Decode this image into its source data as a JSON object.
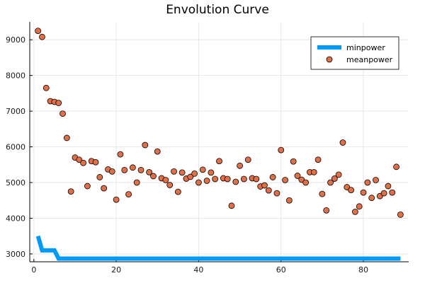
{
  "chart_data": {
    "type": "line",
    "title": "Envolution Curve",
    "xlabel": "",
    "ylabel": "",
    "xlim": [
      -1,
      91
    ],
    "ylim": [
      2780,
      9500
    ],
    "xticks": [
      0,
      20,
      40,
      60,
      80
    ],
    "yticks": [
      3000,
      4000,
      5000,
      6000,
      7000,
      8000,
      9000
    ],
    "grid": true,
    "legend_position": "top-right",
    "colors": {
      "minpower": "#009af9",
      "meanpower": "#e26f46"
    },
    "series": [
      {
        "name": "minpower",
        "style": "line",
        "x": [
          1,
          2,
          3,
          4,
          5,
          6,
          7,
          8,
          9,
          10,
          11,
          12,
          13,
          14,
          15,
          16,
          17,
          18,
          19,
          20,
          21,
          22,
          23,
          24,
          25,
          26,
          27,
          28,
          29,
          30,
          31,
          32,
          33,
          34,
          35,
          36,
          37,
          38,
          39,
          40,
          41,
          42,
          43,
          44,
          45,
          46,
          47,
          48,
          49,
          50,
          51,
          52,
          53,
          54,
          55,
          56,
          57,
          58,
          59,
          60,
          61,
          62,
          63,
          64,
          65,
          66,
          67,
          68,
          69,
          70,
          71,
          72,
          73,
          74,
          75,
          76,
          77,
          78,
          79,
          80,
          81,
          82,
          83,
          84,
          85,
          86,
          87,
          88,
          89
        ],
        "values": [
          3500,
          3100,
          3100,
          3100,
          3100,
          2870,
          2870,
          2870,
          2870,
          2870,
          2870,
          2870,
          2870,
          2870,
          2870,
          2870,
          2870,
          2870,
          2870,
          2870,
          2870,
          2870,
          2870,
          2870,
          2870,
          2870,
          2870,
          2870,
          2870,
          2870,
          2870,
          2870,
          2870,
          2870,
          2870,
          2870,
          2870,
          2870,
          2870,
          2870,
          2870,
          2870,
          2870,
          2870,
          2870,
          2870,
          2870,
          2870,
          2870,
          2870,
          2870,
          2870,
          2870,
          2870,
          2870,
          2870,
          2870,
          2870,
          2870,
          2870,
          2870,
          2870,
          2870,
          2870,
          2870,
          2870,
          2870,
          2870,
          2870,
          2870,
          2870,
          2870,
          2870,
          2870,
          2870,
          2870,
          2870,
          2870,
          2870,
          2870,
          2870,
          2870,
          2870,
          2870,
          2870,
          2870,
          2870,
          2870,
          2870
        ]
      },
      {
        "name": "meanpower",
        "style": "scatter",
        "x": [
          1,
          2,
          3,
          4,
          5,
          6,
          7,
          8,
          9,
          10,
          11,
          12,
          13,
          14,
          15,
          16,
          17,
          18,
          19,
          20,
          21,
          22,
          23,
          24,
          25,
          26,
          27,
          28,
          29,
          30,
          31,
          32,
          33,
          34,
          35,
          36,
          37,
          38,
          39,
          40,
          41,
          42,
          43,
          44,
          45,
          46,
          47,
          48,
          49,
          50,
          51,
          52,
          53,
          54,
          55,
          56,
          57,
          58,
          59,
          60,
          61,
          62,
          63,
          64,
          65,
          66,
          67,
          68,
          69,
          70,
          71,
          72,
          73,
          74,
          75,
          76,
          77,
          78,
          79,
          80,
          81,
          82,
          83,
          84,
          85,
          86,
          87,
          88,
          89
        ],
        "values": [
          9250,
          9080,
          7650,
          7280,
          7260,
          7230,
          6930,
          6250,
          4750,
          5700,
          5640,
          5550,
          4900,
          5600,
          5570,
          5150,
          4840,
          5370,
          5310,
          4520,
          5790,
          5350,
          4670,
          5420,
          5000,
          5350,
          6050,
          5290,
          5180,
          5870,
          5120,
          5070,
          4930,
          5310,
          4740,
          5280,
          5110,
          5160,
          5250,
          5000,
          5360,
          5050,
          5280,
          5100,
          5600,
          5120,
          5100,
          4350,
          5020,
          5470,
          5100,
          5640,
          5120,
          5100,
          4890,
          4920,
          4780,
          5150,
          4700,
          5910,
          5070,
          4500,
          5590,
          5190,
          5080,
          5000,
          5290,
          5290,
          5640,
          4680,
          4220,
          5000,
          5110,
          5220,
          6120,
          4870,
          4790,
          4180,
          4330,
          4720,
          5000,
          4570,
          5070,
          4620,
          4700,
          4900,
          4720,
          5440,
          4100
        ]
      }
    ]
  }
}
